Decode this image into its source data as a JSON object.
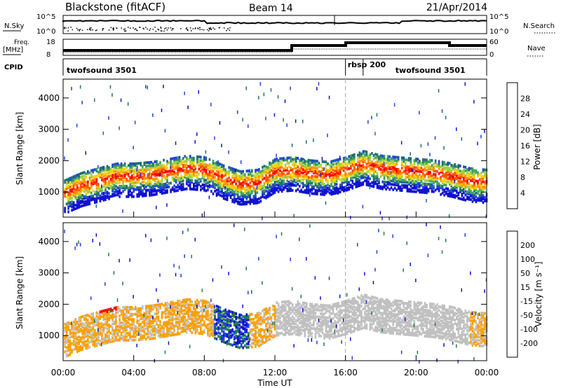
{
  "header": {
    "station": "Blackstone (fitACF)",
    "beam": "Beam 14",
    "date": "21/Apr/2014"
  },
  "summary_panels": {
    "nsky_label": "N.Sky",
    "nsky_ticks": [
      "10^5",
      "10^0"
    ],
    "nsearch_label": "N.Search",
    "freq_label_1": "Freq.",
    "freq_label_2": "[MHz]",
    "freq_ticks": [
      "18",
      "8"
    ],
    "nave_label": "Nave",
    "nave_ticks": [
      "60",
      "0"
    ],
    "cpid_label": "CPID",
    "cpid_segments": [
      {
        "label": "twofsound 3501",
        "start_hour": 0,
        "end_hour": 16
      },
      {
        "label": "rbsp 200",
        "start_hour": 16,
        "end_hour": 17
      },
      {
        "label": "twofsound 3501",
        "start_hour": 17,
        "end_hour": 24
      }
    ]
  },
  "chart_data": [
    {
      "type": "heatmap",
      "name": "power",
      "ylabel": "Slant Range [km]",
      "yticks": [
        "1000",
        "2000",
        "3000",
        "4000"
      ],
      "ylim": [
        200,
        4600
      ],
      "xlim": [
        0,
        24
      ],
      "colorbar_label": "Power [dB]",
      "colorbar_ticks": [
        "4",
        "8",
        "12",
        "16",
        "20",
        "24",
        "28"
      ],
      "colorbar_colors": [
        "#1010d0",
        "#2040e0",
        "#207070",
        "#40a060",
        "#a0d040",
        "#ffd000",
        "#ff9000",
        "#ff5000",
        "#ff0000"
      ],
      "band_profile": {
        "hours": [
          0,
          1,
          2,
          3,
          4,
          5,
          6,
          7,
          8,
          9,
          10,
          11,
          12,
          13,
          14,
          15,
          16,
          17,
          18,
          19,
          20,
          21,
          22,
          23,
          24
        ],
        "range_km": [
          1000,
          1250,
          1400,
          1550,
          1550,
          1600,
          1700,
          1800,
          1750,
          1500,
          1300,
          1350,
          1700,
          1750,
          1650,
          1600,
          1750,
          1950,
          1800,
          1750,
          1700,
          1650,
          1550,
          1400,
          1350
        ]
      }
    },
    {
      "type": "heatmap",
      "name": "velocity",
      "ylabel": "Slant Range [km]",
      "yticks": [
        "1000",
        "2000",
        "3000",
        "4000"
      ],
      "ylim": [
        200,
        4600
      ],
      "xlim": [
        0,
        24
      ],
      "colorbar_label": "Velocity [m s⁻¹]",
      "colorbar_ticks": [
        "200",
        "100",
        "50",
        "15",
        "-15",
        "-50",
        "-100",
        "-200"
      ],
      "colorbar_colors": [
        "#1010d0",
        "#2040e0",
        "#208040",
        "#60c040",
        "#c0c0c0",
        "#ffa000",
        "#ff6000",
        "#ff0000"
      ]
    }
  ],
  "x_axis": {
    "ticks": [
      "00:00",
      "04:00",
      "08:00",
      "12:00",
      "16:00",
      "20:00",
      "00:00"
    ],
    "label": "Time UT"
  }
}
